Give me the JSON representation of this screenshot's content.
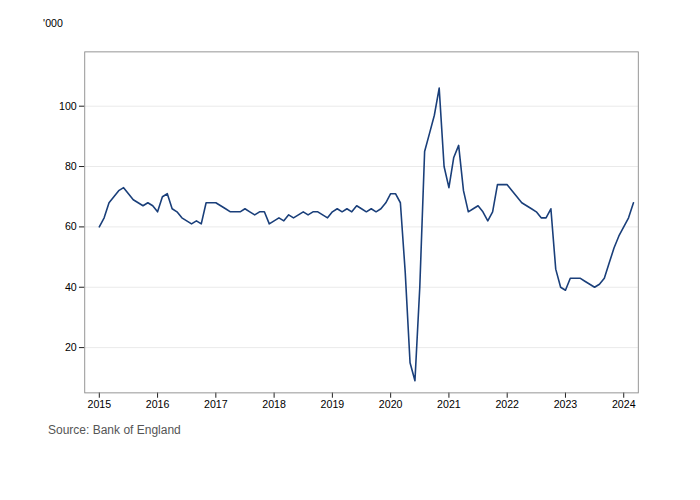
{
  "chart_data": {
    "type": "line",
    "ylabel": "'000",
    "caption": "Source: Bank of England",
    "color": "#1a3f7a",
    "grid": true,
    "xlim": [
      2014.75,
      2024.25
    ],
    "xticks": [
      2015,
      2016,
      2017,
      2018,
      2019,
      2020,
      2021,
      2022,
      2023,
      2024
    ],
    "ylim": [
      5,
      118
    ],
    "yticks": [
      20,
      40,
      60,
      80,
      100
    ],
    "x": [
      2015.0,
      2015.083,
      2015.167,
      2015.25,
      2015.333,
      2015.417,
      2015.5,
      2015.583,
      2015.667,
      2015.75,
      2015.833,
      2015.917,
      2016.0,
      2016.083,
      2016.167,
      2016.25,
      2016.333,
      2016.417,
      2016.5,
      2016.583,
      2016.667,
      2016.75,
      2016.833,
      2016.917,
      2017.0,
      2017.083,
      2017.167,
      2017.25,
      2017.333,
      2017.417,
      2017.5,
      2017.583,
      2017.667,
      2017.75,
      2017.833,
      2017.917,
      2018.0,
      2018.083,
      2018.167,
      2018.25,
      2018.333,
      2018.417,
      2018.5,
      2018.583,
      2018.667,
      2018.75,
      2018.833,
      2018.917,
      2019.0,
      2019.083,
      2019.167,
      2019.25,
      2019.333,
      2019.417,
      2019.5,
      2019.583,
      2019.667,
      2019.75,
      2019.833,
      2019.917,
      2020.0,
      2020.083,
      2020.167,
      2020.25,
      2020.333,
      2020.417,
      2020.5,
      2020.583,
      2020.667,
      2020.75,
      2020.833,
      2020.917,
      2021.0,
      2021.083,
      2021.167,
      2021.25,
      2021.333,
      2021.417,
      2021.5,
      2021.583,
      2021.667,
      2021.75,
      2021.833,
      2021.917,
      2022.0,
      2022.083,
      2022.167,
      2022.25,
      2022.333,
      2022.417,
      2022.5,
      2022.583,
      2022.667,
      2022.75,
      2022.833,
      2022.917,
      2023.0,
      2023.083,
      2023.167,
      2023.25,
      2023.333,
      2023.417,
      2023.5,
      2023.583,
      2023.667,
      2023.75,
      2023.833,
      2023.917,
      2024.0,
      2024.083,
      2024.167
    ],
    "values": [
      60,
      63,
      68,
      70,
      72,
      73,
      71,
      69,
      68,
      67,
      68,
      67,
      65,
      70,
      71,
      66,
      65,
      63,
      62,
      61,
      62,
      61,
      68,
      68,
      68,
      67,
      66,
      65,
      65,
      65,
      66,
      65,
      64,
      65,
      65,
      61,
      62,
      63,
      62,
      64,
      63,
      64,
      65,
      64,
      65,
      65,
      64,
      63,
      65,
      66,
      65,
      66,
      65,
      67,
      66,
      65,
      66,
      65,
      66,
      68,
      71,
      71,
      68,
      45,
      15,
      9,
      40,
      85,
      91,
      97,
      106,
      80,
      73,
      83,
      87,
      72,
      65,
      66,
      67,
      65,
      62,
      65,
      74,
      74,
      74,
      72,
      70,
      68,
      67,
      66,
      65,
      63,
      63,
      66,
      46,
      40,
      39,
      43,
      43,
      43,
      42,
      41,
      40,
      41,
      43,
      48,
      53,
      57,
      60,
      63,
      68
    ]
  }
}
